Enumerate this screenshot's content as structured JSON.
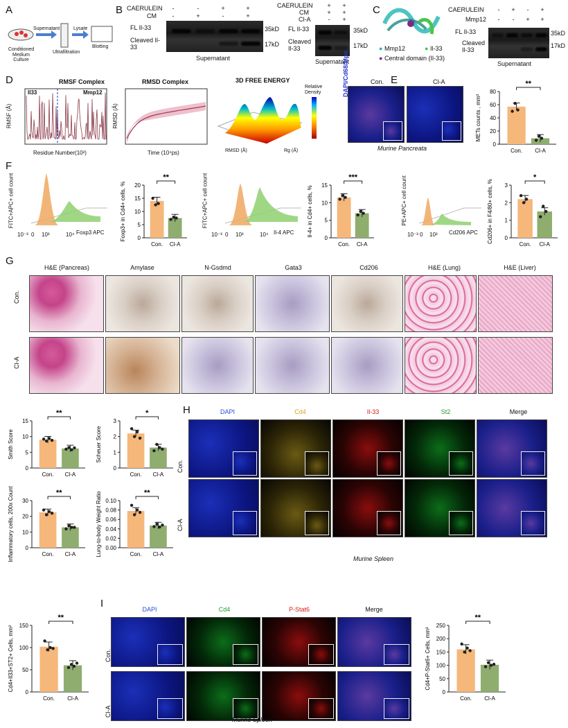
{
  "labels": {
    "A": "A",
    "B": "B",
    "C": "C",
    "D": "D",
    "E": "E",
    "F": "F",
    "G": "G",
    "H": "H",
    "I": "I"
  },
  "A": {
    "step1": "Conditioned Medium Culture",
    "arrow1": "Supernatant",
    "step2": "Ultrafiltration",
    "arrow2": "Lysate",
    "step3": "Blotting"
  },
  "B": {
    "row_caerulein": "CAERULEIN",
    "row_cm": "CM",
    "row_cla": "Cl-A",
    "left_caerulein": [
      "-",
      "-",
      "+",
      "+"
    ],
    "left_cm": [
      "-",
      "+",
      "-",
      "+"
    ],
    "right_caerulein": [
      "+",
      "+"
    ],
    "right_cm": [
      "+",
      "+"
    ],
    "right_cla": [
      "-",
      "+"
    ],
    "fl": "FL Il-33",
    "cleaved": "Cleaved Il-33",
    "kd35": "35kD",
    "kd17": "17kD",
    "footer": "Supernatant"
  },
  "C": {
    "row_caerulein": "CAERULEIN",
    "row_mmp12": "Mmp12",
    "caerulein": [
      "-",
      "+",
      "-",
      "+"
    ],
    "mmp12": [
      "-",
      "-",
      "+",
      "+"
    ],
    "fl": "FL Il-33",
    "cleaved": "Cleaved Il-33",
    "kd35": "35kD",
    "kd17": "17kD",
    "footer": "Supernatant",
    "legend": [
      "Mmp12",
      "Il-33",
      "Central domain (Il-33)"
    ]
  },
  "D": {
    "rmsf": {
      "title": "RMSF Complex",
      "ylabel": "RMSF (Å)",
      "xlabel": "Residue Number(10²)",
      "left_tag": "Il33",
      "right_tag": "Mmp12",
      "yticks": [
        "0",
        "2",
        "4",
        "6",
        "8",
        "10",
        "12",
        "14"
      ],
      "xticks": [
        "0",
        "1",
        "2",
        "3",
        "4",
        "5",
        "6",
        "7"
      ]
    },
    "rmsd": {
      "title": "RMSD Complex",
      "ylabel": "RMSD (Å)",
      "xlabel": "Time (10⁴ps)",
      "yticks": [
        "0",
        "2",
        "4",
        "6",
        "8"
      ],
      "xticks": [
        "0",
        "5",
        "10",
        "15",
        "20",
        "25",
        "30"
      ]
    },
    "fe": {
      "title": "3D FREE ENERGY",
      "cbar_title": "Relative Density",
      "cbar_ticks": [
        "0.4",
        "0.35",
        "0.3",
        "0.25",
        "0.2",
        "0.15",
        "0.1",
        "0.05",
        "0"
      ],
      "xlabel": "RMSD (Å)",
      "ylabel": "Rg (Å)",
      "xticks": [
        "3",
        "4",
        "5",
        "6",
        "7",
        "8"
      ],
      "yticks": [
        "30",
        "30.5",
        "31",
        "31.5",
        "32"
      ]
    }
  },
  "E": {
    "side": "DAPI/Cd68/Mpo",
    "con": "Con.",
    "cla": "Cl-A",
    "caption": "Murine Pancreata"
  },
  "F": {
    "flow1": {
      "ylabel": "FITC+APC+ cell count",
      "xlabel": "Foxp3 APC",
      "ticks": [
        "10⁻³",
        "0",
        "10³",
        "10⁴"
      ]
    },
    "flow2": {
      "ylabel": "FITC+APC+ cell count",
      "xlabel": "Il-4 APC",
      "ticks": [
        "10⁻³",
        "0",
        "10³",
        "10⁴"
      ]
    },
    "flow3": {
      "ylabel": "PE+APC+ cell count",
      "xlabel": "Cd206 APC",
      "ticks": [
        "10⁻³",
        "0",
        "10³"
      ]
    }
  },
  "G": {
    "cols": [
      "H&E (Pancreas)",
      "Amylase",
      "N-Gsdmd",
      "Gata3",
      "Cd206",
      "H&E (Lung)",
      "H&E (Liver)"
    ],
    "rows": [
      "Con.",
      "Cl-A"
    ]
  },
  "H": {
    "cols": [
      "DAPI",
      "Cd4",
      "Il-33",
      "St2",
      "Merge"
    ],
    "rows": [
      "Con.",
      "Cl-A"
    ],
    "caption": "Murine Spleen"
  },
  "I": {
    "cols": [
      "DAPI",
      "Cd4",
      "P-Stat6",
      "Merge"
    ],
    "rows": [
      "Con.",
      "Cl-A"
    ],
    "caption": "Murine Spleen"
  },
  "chart_data": [
    {
      "id": "E-bar",
      "type": "bar",
      "categories": [
        "Con.",
        "Cl-A"
      ],
      "values": [
        57,
        9
      ],
      "ylabel": "METs counts , mm²",
      "ylim": [
        0,
        80
      ],
      "yticks": [
        "0",
        "20",
        "40",
        "60",
        "80"
      ],
      "sig": "**",
      "colors": [
        "#f5b77a",
        "#8fad6e"
      ]
    },
    {
      "id": "F-foxp3",
      "type": "bar",
      "categories": [
        "Con.",
        "Cl-A"
      ],
      "values": [
        14,
        7.5
      ],
      "ylabel": "Foxp3+ in Cd4+ cells, %",
      "ylim": [
        0,
        20
      ],
      "yticks": [
        "0",
        "5",
        "10",
        "15",
        "20"
      ],
      "sig": "**",
      "colors": [
        "#f5b77a",
        "#8fad6e"
      ]
    },
    {
      "id": "F-il4",
      "type": "bar",
      "categories": [
        "Con.",
        "Cl-A"
      ],
      "values": [
        11.5,
        7
      ],
      "ylabel": "Il-4+ in Cd4+ cells, %",
      "ylim": [
        0,
        15
      ],
      "yticks": [
        "0",
        "5",
        "10",
        "15"
      ],
      "sig": "***",
      "colors": [
        "#f5b77a",
        "#8fad6e"
      ]
    },
    {
      "id": "F-cd206",
      "type": "bar",
      "categories": [
        "Con.",
        "Cl-A"
      ],
      "values": [
        2.2,
        1.5
      ],
      "ylabel": "Cd206+ in F4/80+ cells, %",
      "ylim": [
        0,
        3
      ],
      "yticks": [
        "0",
        "1",
        "2",
        "3"
      ],
      "sig": "*",
      "colors": [
        "#f5b77a",
        "#8fad6e"
      ]
    },
    {
      "id": "G-smith",
      "type": "bar",
      "categories": [
        "Con.",
        "Cl-A"
      ],
      "values": [
        9,
        6.2
      ],
      "ylabel": "Smith Score",
      "ylim": [
        0,
        15
      ],
      "yticks": [
        "0",
        "5",
        "10",
        "15"
      ],
      "sig": "**",
      "colors": [
        "#f5b77a",
        "#8fad6e"
      ]
    },
    {
      "id": "G-scheuer",
      "type": "bar",
      "categories": [
        "Con.",
        "Cl-A"
      ],
      "values": [
        2.2,
        1.3
      ],
      "ylabel": "Scheuer Score",
      "ylim": [
        0,
        3
      ],
      "yticks": [
        "0",
        "1",
        "2",
        "3"
      ],
      "sig": "*",
      "colors": [
        "#f5b77a",
        "#8fad6e"
      ]
    },
    {
      "id": "G-inflam",
      "type": "bar",
      "categories": [
        "Con.",
        "Cl-A"
      ],
      "values": [
        22.5,
        13
      ],
      "ylabel": "Inflammatory cells, 200x Count",
      "ylim": [
        0,
        30
      ],
      "yticks": [
        "0",
        "10",
        "20",
        "30"
      ],
      "sig": "**",
      "colors": [
        "#f5b77a",
        "#8fad6e"
      ]
    },
    {
      "id": "G-lung",
      "type": "bar",
      "categories": [
        "Con.",
        "Cl-A"
      ],
      "values": [
        0.078,
        0.047
      ],
      "ylabel": "Lung-to-body Weight Ratio",
      "ylim": [
        0,
        0.1
      ],
      "yticks": [
        "0.00",
        "0.02",
        "0.04",
        "0.06",
        "0.08",
        "0.10"
      ],
      "sig": "**",
      "colors": [
        "#f5b77a",
        "#8fad6e"
      ]
    },
    {
      "id": "H-bar",
      "type": "bar",
      "categories": [
        "Con.",
        "Cl-A"
      ],
      "values": [
        102,
        60
      ],
      "ylabel": "Cd4+Il33+ST2+ Cells, mm²",
      "ylim": [
        0,
        150
      ],
      "yticks": [
        "0",
        "50",
        "100",
        "150"
      ],
      "sig": "**",
      "colors": [
        "#f5b77a",
        "#8fad6e"
      ]
    },
    {
      "id": "I-bar",
      "type": "bar",
      "categories": [
        "Con.",
        "Cl-A"
      ],
      "values": [
        160,
        102
      ],
      "ylabel": "Cd4+P-Stat6+ Cells, mm²",
      "ylim": [
        0,
        250
      ],
      "yticks": [
        "0",
        "50",
        "100",
        "150",
        "200",
        "250"
      ],
      "sig": "**",
      "colors": [
        "#f5b77a",
        "#8fad6e"
      ]
    }
  ]
}
